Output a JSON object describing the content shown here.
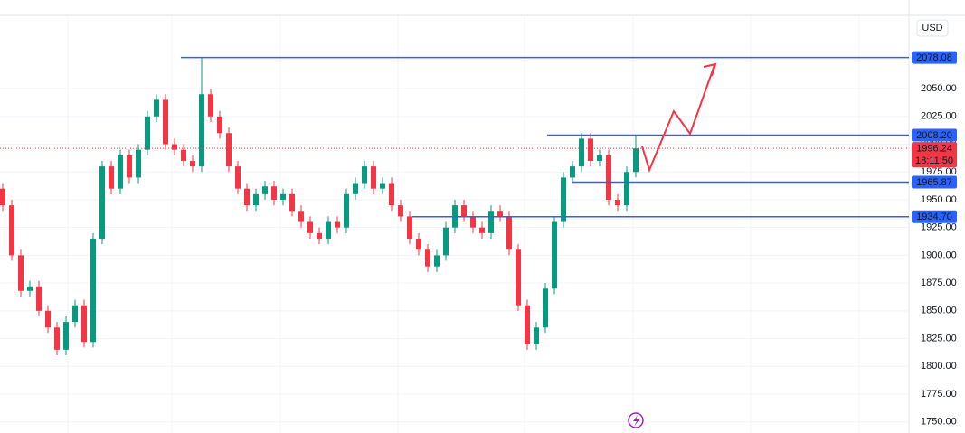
{
  "chart_data": {
    "type": "candlestick",
    "currency": "USD",
    "open": [
      1960,
      1945,
      1900,
      1868,
      1872,
      1850,
      1835,
      1815,
      1840,
      1855,
      1822,
      1915,
      1980,
      1960,
      1990,
      1970,
      1995,
      2025,
      2040,
      2000,
      1995,
      1985,
      1980,
      2045,
      2025,
      2010,
      1980,
      1960,
      1945,
      1955,
      1962,
      1950,
      1955,
      1940,
      1930,
      1920,
      1915,
      1930,
      1925,
      1955,
      1965,
      1980,
      1960,
      1965,
      1945,
      1935,
      1915,
      1905,
      1890,
      1900,
      1925,
      1945,
      1935,
      1925,
      1920,
      1940,
      1935,
      1905,
      1855,
      1820,
      1835,
      1870,
      1930,
      1970,
      1980,
      2005,
      1985,
      1990,
      1950,
      1945,
      1975
    ],
    "high": [
      1965,
      1950,
      1905,
      1877,
      1877,
      1855,
      1840,
      1845,
      1860,
      1860,
      1920,
      1985,
      1985,
      1995,
      1995,
      2000,
      2030,
      2045,
      2045,
      2005,
      2000,
      1990,
      2078.08,
      2050,
      2030,
      2015,
      1985,
      1965,
      1960,
      1967,
      1967,
      1960,
      1960,
      1945,
      1935,
      1925,
      1935,
      1935,
      1960,
      1970,
      1985,
      1985,
      1970,
      1970,
      1950,
      1940,
      1920,
      1910,
      1905,
      1930,
      1950,
      1950,
      1940,
      1930,
      1945,
      1945,
      1940,
      1910,
      1860,
      1840,
      1875,
      1935,
      1975,
      1985,
      2010,
      2010,
      1995,
      1995,
      1955,
      1980,
      2008.2
    ],
    "low": [
      1940,
      1895,
      1863,
      1863,
      1845,
      1830,
      1810,
      1810,
      1835,
      1817,
      1817,
      1910,
      1955,
      1955,
      1965,
      1965,
      1990,
      2020,
      1995,
      1990,
      1980,
      1975,
      1975,
      2020,
      2005,
      1975,
      1955,
      1940,
      1940,
      1950,
      1945,
      1945,
      1935,
      1925,
      1915,
      1910,
      1910,
      1920,
      1920,
      1950,
      1960,
      1955,
      1955,
      1940,
      1930,
      1910,
      1900,
      1885,
      1885,
      1895,
      1920,
      1930,
      1920,
      1915,
      1915,
      1930,
      1900,
      1850,
      1815,
      1815,
      1830,
      1865,
      1925,
      1965,
      1975,
      1980,
      1980,
      1945,
      1940,
      1940,
      1970
    ],
    "close": [
      1945,
      1900,
      1868,
      1872,
      1850,
      1835,
      1815,
      1840,
      1855,
      1822,
      1915,
      1980,
      1960,
      1990,
      1970,
      1995,
      2025,
      2040,
      2000,
      1995,
      1985,
      1980,
      2045,
      2025,
      2010,
      1980,
      1960,
      1945,
      1955,
      1962,
      1950,
      1955,
      1940,
      1930,
      1920,
      1915,
      1930,
      1925,
      1955,
      1965,
      1980,
      1960,
      1965,
      1945,
      1935,
      1915,
      1905,
      1890,
      1900,
      1925,
      1945,
      1935,
      1925,
      1920,
      1940,
      1935,
      1905,
      1855,
      1820,
      1835,
      1870,
      1930,
      1970,
      1980,
      2005,
      1985,
      1990,
      1950,
      1945,
      1975,
      1996.24
    ],
    "up_color": "#089981",
    "down_color": "#f23645",
    "level_color": "#2962ff",
    "ylim": [
      1740,
      2116
    ],
    "yticks": [
      {
        "value": 1750,
        "label": "1750.00"
      },
      {
        "value": 1775,
        "label": "1775.00"
      },
      {
        "value": 1800,
        "label": "1800.00"
      },
      {
        "value": 1825,
        "label": "1825.00"
      },
      {
        "value": 1850,
        "label": "1850.00"
      },
      {
        "value": 1875,
        "label": "1875.00"
      },
      {
        "value": 1900,
        "label": "1900.00"
      },
      {
        "value": 1925,
        "label": "1925.00"
      },
      {
        "value": 1950,
        "label": "1950.00"
      },
      {
        "value": 1975,
        "label": "1975.00"
      },
      {
        "value": 2000,
        "label": "2000.00"
      },
      {
        "value": 2025,
        "label": "2025.00"
      },
      {
        "value": 2050,
        "label": "2050.00"
      }
    ],
    "levels": [
      2078.08,
      {
        "value": 2008.2,
        "label": "2008.20"
      },
      {
        "value": 1965.87,
        "label": "1965.87"
      },
      {
        "value": 1934.7,
        "label": "1934.70"
      }
    ],
    "current_price": 1996.24,
    "countdown": "18:11:50",
    "grid": true
  }
}
